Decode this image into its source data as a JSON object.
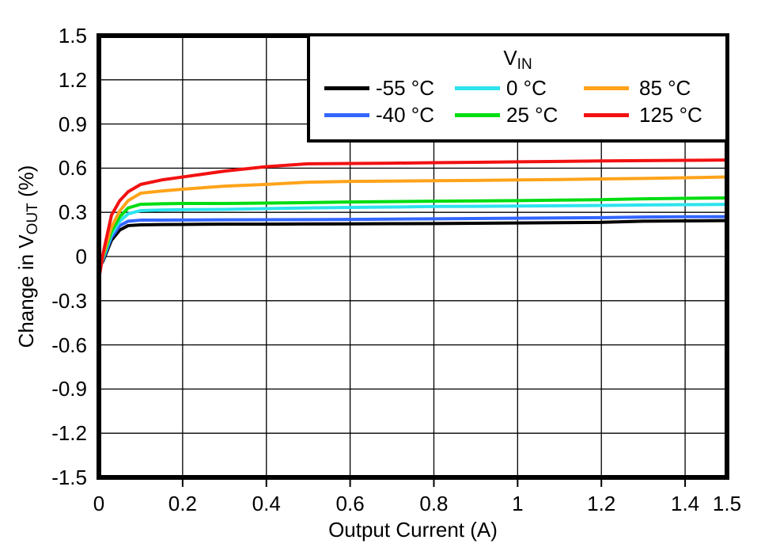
{
  "chart_data": {
    "type": "line",
    "title": "",
    "xlabel": "Output Current (A)",
    "ylabel": {
      "pre": "Change in V",
      "sub": "OUT",
      "post": " (%)"
    },
    "xlim": [
      0,
      1.5
    ],
    "ylim": [
      -1.5,
      1.5
    ],
    "grid": true,
    "x_tick_values": [
      0,
      0.2,
      0.4,
      0.6,
      0.8,
      1,
      1.2,
      1.4,
      1.5
    ],
    "x_tick_labels": [
      "0",
      "0.2",
      "0.4",
      "0.6",
      "0.8",
      "1",
      "1.2",
      "1.4",
      "1.5"
    ],
    "y_tick_values": [
      1.5,
      1.2,
      0.9,
      0.6,
      0.3,
      0,
      -0.3,
      -0.6,
      -0.9,
      -1.2,
      -1.5
    ],
    "y_tick_labels": [
      "1.5",
      "1.2",
      "0.9",
      "0.6",
      "0.3",
      "0",
      "-0.3",
      "-0.6",
      "-0.9",
      "-1.2",
      "-1.5"
    ],
    "legend": {
      "title": {
        "main": "V",
        "sub": "IN"
      },
      "position": "top-right",
      "order": "column-major"
    },
    "x": [
      0,
      0.01,
      0.03,
      0.05,
      0.07,
      0.1,
      0.15,
      0.2,
      0.3,
      0.4,
      0.5,
      0.6,
      0.7,
      0.8,
      0.9,
      1,
      1.1,
      1.2,
      1.3,
      1.4,
      1.5
    ],
    "series": [
      {
        "name": "-55 °C",
        "color": "#000000",
        "y": [
          -0.08,
          -0.03,
          0.11,
          0.18,
          0.21,
          0.215,
          0.217,
          0.218,
          0.22,
          0.22,
          0.221,
          0.222,
          0.223,
          0.224,
          0.226,
          0.228,
          0.23,
          0.232,
          0.24,
          0.242,
          0.244
        ]
      },
      {
        "name": "-40 °C",
        "color": "#3366FF",
        "y": [
          -0.09,
          -0.02,
          0.13,
          0.21,
          0.24,
          0.247,
          0.247,
          0.248,
          0.249,
          0.25,
          0.251,
          0.252,
          0.254,
          0.256,
          0.258,
          0.26,
          0.262,
          0.264,
          0.268,
          0.27,
          0.271
        ]
      },
      {
        "name": "0 °C",
        "color": "#2DE3EE",
        "y": [
          -0.1,
          -0.01,
          0.15,
          0.24,
          0.29,
          0.312,
          0.316,
          0.318,
          0.32,
          0.325,
          0.33,
          0.333,
          0.336,
          0.34,
          0.341,
          0.343,
          0.345,
          0.347,
          0.35,
          0.352,
          0.354
        ]
      },
      {
        "name": "25 °C",
        "color": "#00DD11",
        "y": [
          -0.11,
          0,
          0.17,
          0.27,
          0.33,
          0.355,
          0.358,
          0.36,
          0.36,
          0.363,
          0.366,
          0.37,
          0.373,
          0.376,
          0.378,
          0.38,
          0.383,
          0.386,
          0.392,
          0.395,
          0.398
        ]
      },
      {
        "name": "85 °C",
        "color": "#FFA31A",
        "y": [
          -0.12,
          0.01,
          0.2,
          0.31,
          0.38,
          0.43,
          0.445,
          0.457,
          0.478,
          0.49,
          0.505,
          0.51,
          0.512,
          0.515,
          0.517,
          0.52,
          0.523,
          0.527,
          0.53,
          0.535,
          0.54
        ]
      },
      {
        "name": "125 °C",
        "color": "#F21111",
        "y": [
          -0.155,
          0.02,
          0.28,
          0.38,
          0.44,
          0.49,
          0.52,
          0.54,
          0.58,
          0.61,
          0.63,
          0.632,
          0.634,
          0.637,
          0.64,
          0.643,
          0.646,
          0.649,
          0.651,
          0.653,
          0.655
        ]
      }
    ]
  }
}
